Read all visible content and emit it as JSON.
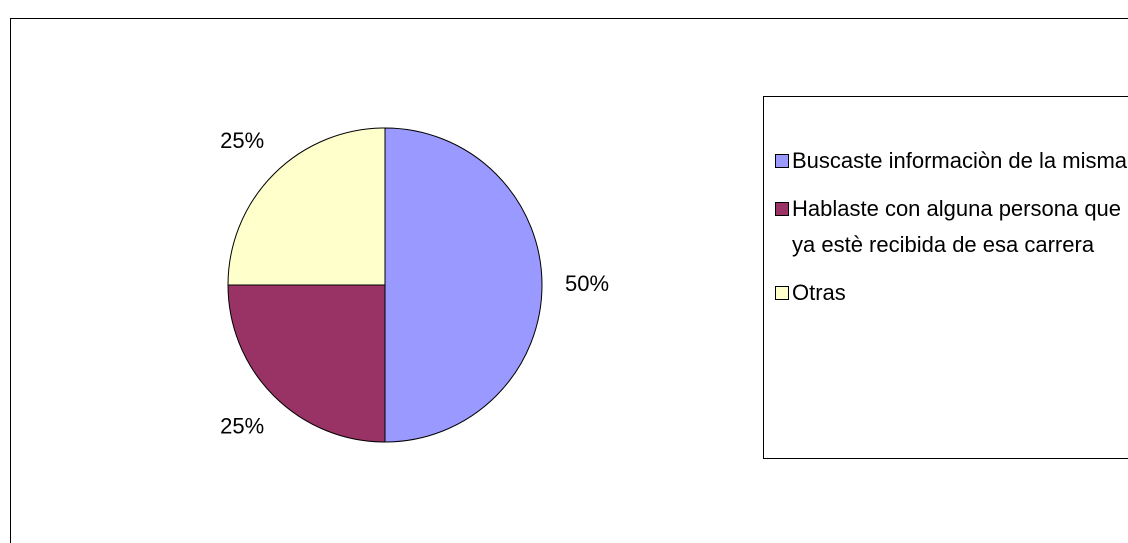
{
  "chart_data": {
    "type": "pie",
    "categories": [
      "Buscaste informaciòn de la misma",
      "Hablaste con alguna persona que ya estè recibida de esa carrera",
      "Otras"
    ],
    "values": [
      50,
      25,
      25
    ],
    "value_labels": [
      "50%",
      "25%",
      "25%"
    ],
    "colors": [
      "#9999ff",
      "#993366",
      "#ffffcc"
    ],
    "legend": "right"
  }
}
